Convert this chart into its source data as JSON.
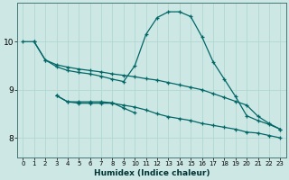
{
  "xlabel": "Humidex (Indice chaleur)",
  "ylabel": "",
  "bg_color": "#cde8e4",
  "grid_color": "#b0d8d0",
  "line_color": "#006666",
  "xlim": [
    -0.5,
    23.5
  ],
  "ylim": [
    7.6,
    10.8
  ],
  "yticks": [
    8,
    9,
    10
  ],
  "xticks": [
    0,
    1,
    2,
    3,
    4,
    5,
    6,
    7,
    8,
    9,
    10,
    11,
    12,
    13,
    14,
    15,
    16,
    17,
    18,
    19,
    20,
    21,
    22,
    23
  ],
  "lines": [
    {
      "x": [
        0,
        1,
        2,
        3,
        4,
        5,
        6,
        7,
        8,
        9,
        10,
        11,
        12,
        13,
        14,
        15,
        16,
        17,
        18,
        19,
        20,
        21,
        22,
        23
      ],
      "y": [
        10.0,
        10.0,
        9.62,
        9.52,
        9.47,
        9.43,
        9.4,
        9.37,
        9.33,
        9.3,
        9.27,
        9.23,
        9.2,
        9.15,
        9.1,
        9.05,
        9.0,
        8.92,
        8.84,
        8.76,
        8.68,
        8.45,
        8.3,
        8.18
      ]
    },
    {
      "x": [
        1,
        2,
        3,
        4,
        5,
        6,
        7,
        8,
        9,
        10,
        11,
        12,
        13,
        14,
        15,
        16,
        17,
        18,
        19,
        20,
        21,
        22,
        23
      ],
      "y": [
        10.0,
        9.62,
        9.48,
        9.4,
        9.36,
        9.33,
        9.28,
        9.22,
        9.17,
        9.5,
        10.15,
        10.5,
        10.62,
        10.62,
        10.52,
        10.1,
        9.58,
        9.22,
        8.86,
        8.46,
        8.36,
        8.28,
        8.18
      ]
    },
    {
      "x": [
        3,
        4,
        5,
        6,
        7,
        8,
        9,
        10,
        11,
        12,
        13,
        14,
        15,
        16,
        17,
        18,
        19,
        20,
        21,
        22,
        23
      ],
      "y": [
        8.88,
        8.75,
        8.72,
        8.72,
        8.72,
        8.72,
        8.68,
        8.64,
        8.58,
        8.5,
        8.44,
        8.4,
        8.36,
        8.3,
        8.26,
        8.22,
        8.18,
        8.12,
        8.1,
        8.05,
        8.0
      ]
    },
    {
      "x": [
        3,
        4,
        5,
        6,
        7,
        8,
        9,
        10
      ],
      "y": [
        8.88,
        8.75,
        8.75,
        8.75,
        8.75,
        8.73,
        8.62,
        8.52
      ]
    }
  ]
}
